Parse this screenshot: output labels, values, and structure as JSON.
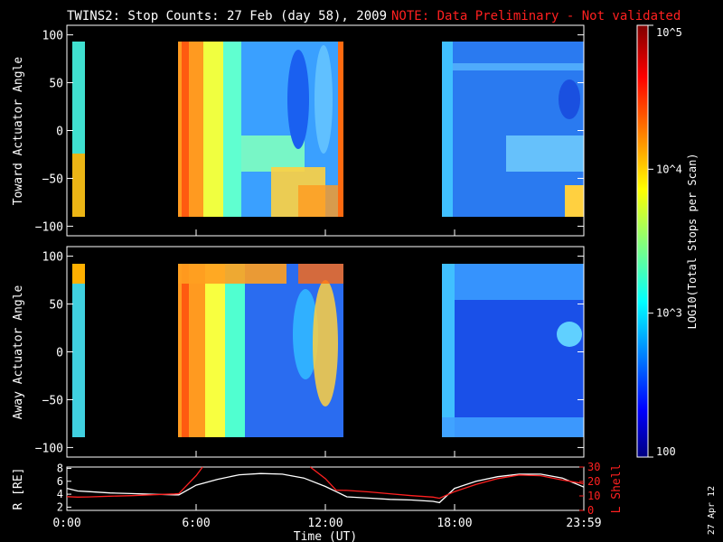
{
  "header": {
    "title": "TWINS2: Stop Counts: 27 Feb (day  58), 2009",
    "note": "NOTE: Data Preliminary - Not validated"
  },
  "stamp": "27 Apr 12",
  "colors": {
    "background": "#000000",
    "axes": "#ffffff",
    "note": "#ff2020",
    "r_line": "#ffffff",
    "lshell_line": "#ff2020"
  },
  "chart_data": [
    {
      "type": "heatmap",
      "name": "toward",
      "ylabel": "Toward Actuator Angle",
      "ylim": [
        -110,
        110
      ],
      "yticks": [
        "100",
        "50",
        "0",
        "−50",
        "−100"
      ],
      "ytick_values": [
        100,
        50,
        0,
        -50,
        -100
      ],
      "angle_range": [
        -90,
        90
      ],
      "xlim_hours": [
        0,
        24
      ],
      "data_blocks_hours": [
        [
          0.0,
          0.33
        ],
        [
          5.1,
          12.9
        ],
        [
          17.7,
          24.0
        ]
      ],
      "log10_counts_range": [
        2,
        5
      ]
    },
    {
      "type": "heatmap",
      "name": "away",
      "ylabel": "Away Actuator Angle",
      "ylim": [
        -110,
        110
      ],
      "yticks": [
        "100",
        "50",
        "0",
        "−50",
        "−100"
      ],
      "ytick_values": [
        100,
        50,
        0,
        -50,
        -100
      ],
      "angle_range": [
        -90,
        90
      ],
      "xlim_hours": [
        0,
        24
      ],
      "data_blocks_hours": [
        [
          0.0,
          0.33
        ],
        [
          5.1,
          12.9
        ],
        [
          17.7,
          24.0
        ]
      ],
      "log10_counts_range": [
        2,
        5
      ]
    },
    {
      "type": "line",
      "name": "ephemeris",
      "ylabel_left": "R [RE]",
      "ylabel_right": "L Shell",
      "xlabel": "Time (UT)",
      "xticks": [
        "0:00",
        "6:00",
        "12:00",
        "18:00",
        "23:59"
      ],
      "xtick_hours": [
        0,
        6,
        12,
        18,
        24
      ],
      "yticks_left": [
        "8",
        "6",
        "4",
        "2"
      ],
      "ylim_left": [
        1.5,
        8.2
      ],
      "yticks_right": [
        "30",
        "20",
        "10",
        "0"
      ],
      "ylim_right": [
        0,
        30
      ],
      "series": [
        {
          "name": "R",
          "axis": "left",
          "x": [
            0,
            0.5,
            1,
            2,
            3,
            4,
            5,
            5.2,
            6,
            7,
            8,
            9,
            10,
            11,
            12,
            12.5,
            13,
            14,
            15,
            16,
            17,
            17.3,
            18,
            19,
            20,
            21,
            22,
            23,
            24
          ],
          "y": [
            4.9,
            4.5,
            4.4,
            4.2,
            4.1,
            4.0,
            3.9,
            3.9,
            5.4,
            6.3,
            7.0,
            7.2,
            7.1,
            6.5,
            5.2,
            4.4,
            3.6,
            3.4,
            3.2,
            3.1,
            2.9,
            2.7,
            4.9,
            6.0,
            6.7,
            7.1,
            7.1,
            6.5,
            5.1
          ]
        },
        {
          "name": "L Shell",
          "axis": "right",
          "x": [
            0,
            0.5,
            1,
            2,
            3,
            4,
            5,
            5.2,
            6.0,
            6.3,
            null,
            11.3,
            12,
            12.5,
            13,
            14,
            15,
            16,
            17,
            17.3,
            18,
            19,
            20,
            21,
            22,
            23,
            24
          ],
          "y": [
            9.5,
            9.2,
            9.3,
            9.8,
            10.2,
            10.8,
            11.4,
            11.6,
            24.0,
            30.0,
            null,
            30.0,
            22.0,
            14.0,
            13.8,
            12.8,
            11.5,
            10.2,
            9.2,
            8.4,
            13.0,
            18.0,
            22.0,
            24.5,
            24.0,
            21.0,
            18.5
          ]
        }
      ]
    },
    {
      "type": "heatmap",
      "name": "colorbar",
      "label": "LOG10(Total Stops per Scan)",
      "ticks": [
        "10^5",
        "10^4",
        "10^3",
        "100"
      ],
      "tick_values_log10": [
        5,
        4,
        3,
        2
      ],
      "range_log10": [
        2,
        5
      ]
    }
  ]
}
